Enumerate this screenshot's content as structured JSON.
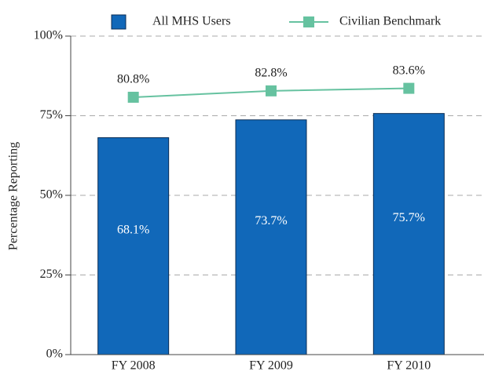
{
  "chart_data": {
    "type": "bar",
    "y_label": "Percentage Reporting",
    "categories": [
      "FY 2008",
      "FY 2009",
      "FY 2010"
    ],
    "series": [
      {
        "name": "All MHS Users",
        "type": "bar",
        "color": "#1168b9",
        "values": [
          68.1,
          73.7,
          75.7
        ],
        "value_labels": [
          "68.1%",
          "73.7%",
          "75.7%"
        ]
      },
      {
        "name": "Civilian Benchmark",
        "type": "line",
        "color": "#66c2a0",
        "values": [
          80.8,
          82.8,
          83.6
        ],
        "value_labels": [
          "80.8%",
          "82.8%",
          "83.6%"
        ]
      }
    ],
    "ylim": [
      0,
      100
    ],
    "yticks": [
      {
        "value": 0,
        "label": "0%"
      },
      {
        "value": 25,
        "label": "25%"
      },
      {
        "value": 50,
        "label": "50%"
      },
      {
        "value": 75,
        "label": "75%"
      },
      {
        "value": 100,
        "label": "100%"
      }
    ],
    "grid": true,
    "legend": "top"
  }
}
